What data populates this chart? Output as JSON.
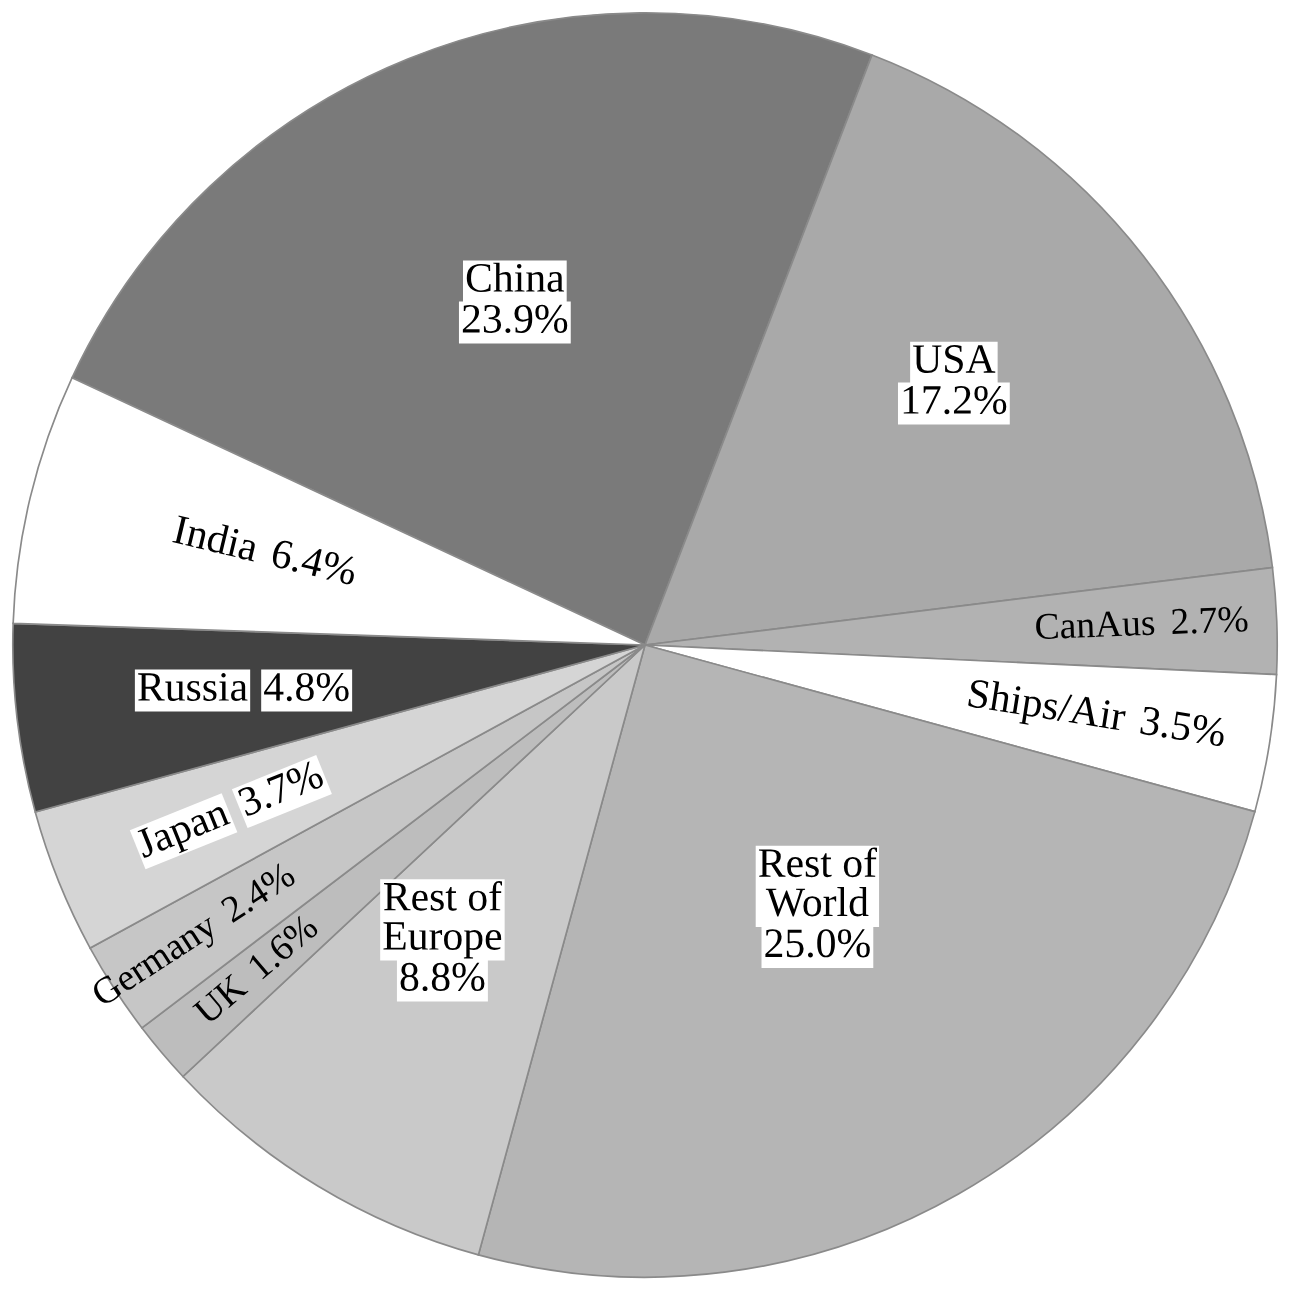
{
  "chart_data": {
    "type": "pie",
    "categories": [
      "China",
      "USA",
      "CanAus",
      "Ships/Air",
      "Rest of World",
      "Rest of Europe",
      "UK",
      "Germany",
      "Japan",
      "Russia",
      "India"
    ],
    "values": [
      23.9,
      17.2,
      2.7,
      3.5,
      25.0,
      8.8,
      1.6,
      2.4,
      3.7,
      4.8,
      6.4
    ],
    "colors": [
      "#7a7a7a",
      "#a9a9a9",
      "#b2b2b2",
      "#ffffff",
      "#b5b5b5",
      "#c9c9c9",
      "#bdbdbd",
      "#c6c6c6",
      "#d5d5d5",
      "#424242",
      "#ffffff"
    ],
    "value_labels": [
      "23.9%",
      "17.2%",
      "2.7%",
      "3.5%",
      "25.0%",
      "8.8%",
      "1.6%",
      "2.4%",
      "3.7%",
      "4.8%",
      "6.4%"
    ]
  }
}
